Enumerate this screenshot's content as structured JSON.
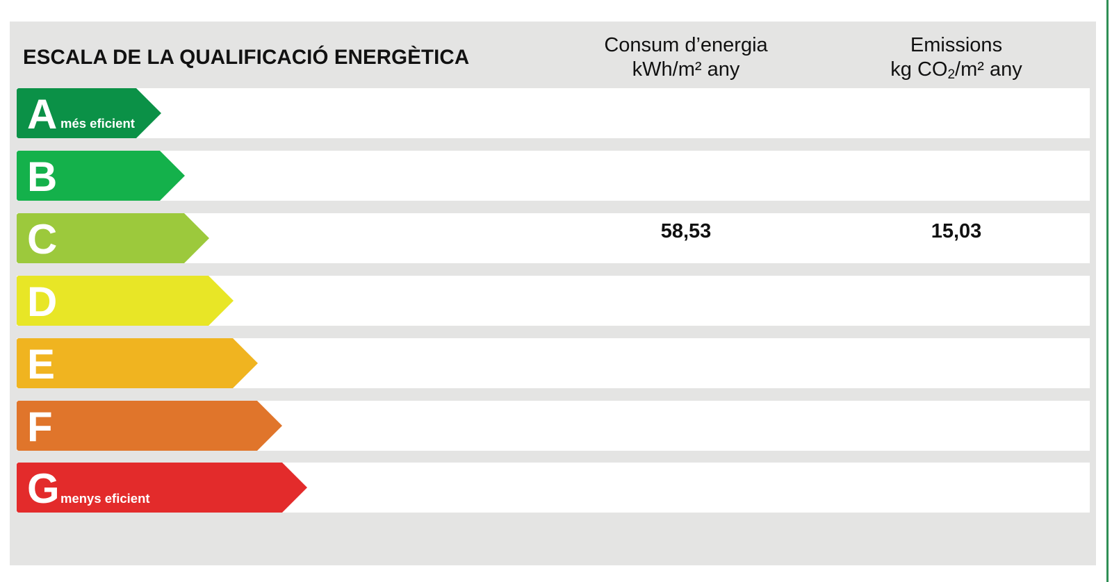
{
  "header": {
    "title": "ESCALA DE LA QUALIFICACIÓ ENERGÈTICA",
    "consum_line1": "Consum d’energia",
    "consum_line2": "kWh/m² any",
    "emissions_line1": "Emissions",
    "emissions_line2_pre": "kg CO",
    "emissions_line2_sub": "2",
    "emissions_line2_post": "/m² any"
  },
  "ratings": [
    {
      "letter": "A",
      "sublabel": "més eficient",
      "color": "#0b9147",
      "consum": "",
      "emissions": ""
    },
    {
      "letter": "B",
      "sublabel": "",
      "color": "#14b14b",
      "consum": "",
      "emissions": ""
    },
    {
      "letter": "C",
      "sublabel": "",
      "color": "#9cc93c",
      "consum": "58,53",
      "emissions": "15,03"
    },
    {
      "letter": "D",
      "sublabel": "",
      "color": "#e8e626",
      "consum": "",
      "emissions": ""
    },
    {
      "letter": "E",
      "sublabel": "",
      "color": "#f0b420",
      "consum": "",
      "emissions": ""
    },
    {
      "letter": "F",
      "sublabel": "",
      "color": "#e0752b",
      "consum": "",
      "emissions": ""
    },
    {
      "letter": "G",
      "sublabel": "menys eficient",
      "color": "#e32b2b",
      "consum": "",
      "emissions": ""
    }
  ]
}
